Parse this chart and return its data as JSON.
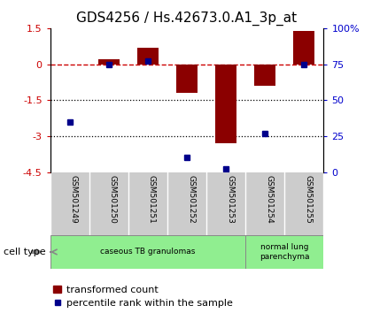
{
  "title": "GDS4256 / Hs.42673.0.A1_3p_at",
  "samples": [
    "GSM501249",
    "GSM501250",
    "GSM501251",
    "GSM501252",
    "GSM501253",
    "GSM501254",
    "GSM501255"
  ],
  "transformed_count": [
    0.0,
    0.2,
    0.7,
    -1.2,
    -3.3,
    -0.9,
    1.4
  ],
  "percentile_rank": [
    35,
    75,
    77,
    10,
    2,
    27,
    75
  ],
  "ylim_left": [
    -4.5,
    1.5
  ],
  "ylim_right": [
    0,
    100
  ],
  "yticks_left": [
    -4.5,
    -3,
    -1.5,
    0,
    1.5
  ],
  "ytick_labels_left": [
    "-4.5",
    "-3",
    "-1.5",
    "0",
    "1.5"
  ],
  "yticks_right": [
    0,
    25,
    50,
    75,
    100
  ],
  "ytick_labels_right": [
    "0",
    "25",
    "50",
    "75",
    "100%"
  ],
  "hlines_dotted": [
    -1.5,
    -3.0
  ],
  "dashed_hline_y": 0,
  "bar_color": "#8B0000",
  "dot_color": "#00008B",
  "bar_width": 0.55,
  "group_ranges": [
    [
      0,
      4
    ],
    [
      5,
      6
    ]
  ],
  "group_labels": [
    "caseous TB granulomas",
    "normal lung\nparenchyma"
  ],
  "group_color": "#90EE90",
  "cell_type_label": "cell type",
  "legend_bar_label": "transformed count",
  "legend_dot_label": "percentile rank within the sample",
  "tick_color_left": "#cc0000",
  "tick_color_right": "#0000cc",
  "title_fontsize": 11,
  "tick_fontsize": 8,
  "label_fontsize": 7,
  "legend_fontsize": 8
}
